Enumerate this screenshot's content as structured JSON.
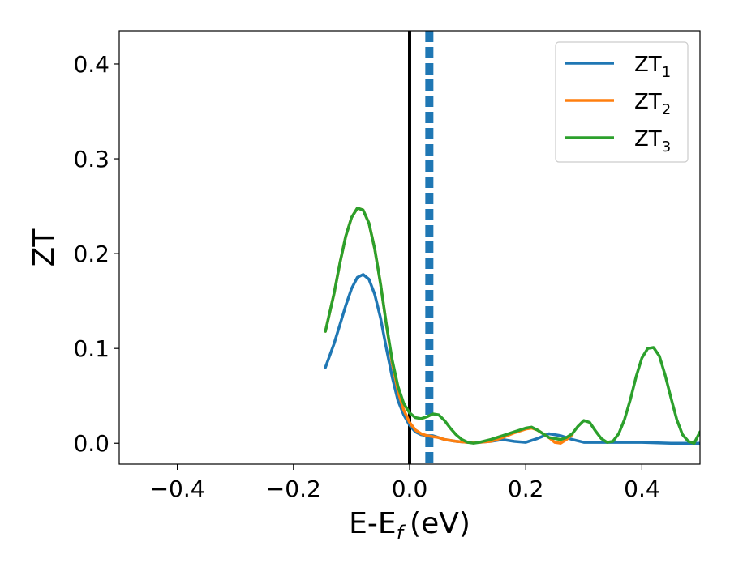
{
  "chart_data": {
    "type": "line",
    "xlabel": "E-E",
    "xlabel_sub": "f",
    "xlabel_unit": "(eV)",
    "ylabel": "ZT",
    "xlim": [
      -0.5,
      0.5
    ],
    "ylim": [
      -0.022,
      0.435
    ],
    "xticks": [
      -0.4,
      -0.2,
      0.0,
      0.2,
      0.4
    ],
    "xtick_labels": [
      "−0.4",
      "−0.2",
      "0.0",
      "0.2",
      "0.4"
    ],
    "yticks": [
      0.0,
      0.1,
      0.2,
      0.3,
      0.4
    ],
    "ytick_labels": [
      "0.0",
      "0.1",
      "0.2",
      "0.3",
      "0.4"
    ],
    "grid": false,
    "legend_position": "top-right",
    "vlines": [
      {
        "x": 0.0,
        "color": "#000000",
        "style": "solid"
      },
      {
        "x": 0.034,
        "color": "#1f77b4",
        "style": "dashed"
      }
    ],
    "series": [
      {
        "name": "ZT",
        "name_sub": "1",
        "color": "#1f77b4",
        "x": [
          -0.145,
          -0.13,
          -0.12,
          -0.11,
          -0.1,
          -0.09,
          -0.08,
          -0.07,
          -0.06,
          -0.05,
          -0.04,
          -0.03,
          -0.02,
          -0.01,
          0.0,
          0.01,
          0.02,
          0.03,
          0.04,
          0.05,
          0.06,
          0.08,
          0.1,
          0.12,
          0.14,
          0.16,
          0.18,
          0.2,
          0.22,
          0.24,
          0.26,
          0.28,
          0.3,
          0.35,
          0.4,
          0.45,
          0.5
        ],
        "y": [
          0.08,
          0.105,
          0.125,
          0.145,
          0.163,
          0.175,
          0.178,
          0.173,
          0.157,
          0.132,
          0.1,
          0.07,
          0.045,
          0.03,
          0.019,
          0.012,
          0.009,
          0.008,
          0.008,
          0.006,
          0.004,
          0.002,
          0.001,
          0.001,
          0.002,
          0.004,
          0.002,
          0.001,
          0.005,
          0.01,
          0.008,
          0.004,
          0.001,
          0.001,
          0.001,
          0.0,
          0.0
        ]
      },
      {
        "name": "ZT",
        "name_sub": "2",
        "color": "#ff7f0e",
        "x": [
          -0.145,
          -0.13,
          -0.12,
          -0.11,
          -0.1,
          -0.09,
          -0.08,
          -0.07,
          -0.06,
          -0.05,
          -0.04,
          -0.03,
          -0.02,
          -0.01,
          0.0,
          0.01,
          0.02,
          0.03,
          0.04,
          0.05,
          0.06,
          0.08,
          0.1,
          0.12,
          0.14,
          0.16,
          0.18,
          0.2,
          0.21,
          0.22,
          0.24,
          0.25,
          0.26,
          0.27,
          0.28
        ],
        "y": [
          0.118,
          0.158,
          0.19,
          0.218,
          0.238,
          0.248,
          0.246,
          0.232,
          0.205,
          0.168,
          0.125,
          0.085,
          0.055,
          0.035,
          0.022,
          0.014,
          0.01,
          0.008,
          0.007,
          0.006,
          0.004,
          0.002,
          0.001,
          0.001,
          0.002,
          0.006,
          0.011,
          0.015,
          0.016,
          0.014,
          0.006,
          0.001,
          0.0,
          0.004,
          0.009
        ]
      },
      {
        "name": "ZT",
        "name_sub": "3",
        "color": "#2ca02c",
        "x": [
          -0.145,
          -0.13,
          -0.12,
          -0.11,
          -0.1,
          -0.09,
          -0.08,
          -0.07,
          -0.06,
          -0.05,
          -0.04,
          -0.03,
          -0.02,
          -0.01,
          0.0,
          0.01,
          0.02,
          0.03,
          0.04,
          0.05,
          0.06,
          0.07,
          0.08,
          0.09,
          0.1,
          0.11,
          0.12,
          0.14,
          0.16,
          0.18,
          0.2,
          0.21,
          0.22,
          0.24,
          0.26,
          0.27,
          0.28,
          0.29,
          0.3,
          0.31,
          0.32,
          0.33,
          0.34,
          0.35,
          0.36,
          0.37,
          0.38,
          0.39,
          0.4,
          0.41,
          0.42,
          0.43,
          0.44,
          0.45,
          0.46,
          0.47,
          0.48,
          0.49,
          0.5
        ],
        "y": [
          0.118,
          0.158,
          0.19,
          0.218,
          0.238,
          0.248,
          0.246,
          0.232,
          0.205,
          0.168,
          0.125,
          0.088,
          0.06,
          0.042,
          0.032,
          0.027,
          0.026,
          0.028,
          0.031,
          0.03,
          0.024,
          0.016,
          0.009,
          0.004,
          0.001,
          0.0,
          0.001,
          0.004,
          0.008,
          0.012,
          0.016,
          0.017,
          0.014,
          0.006,
          0.004,
          0.006,
          0.01,
          0.018,
          0.024,
          0.022,
          0.013,
          0.005,
          0.001,
          0.002,
          0.01,
          0.025,
          0.046,
          0.07,
          0.09,
          0.1,
          0.101,
          0.092,
          0.072,
          0.048,
          0.025,
          0.009,
          0.002,
          0.0,
          0.012
        ]
      }
    ]
  }
}
